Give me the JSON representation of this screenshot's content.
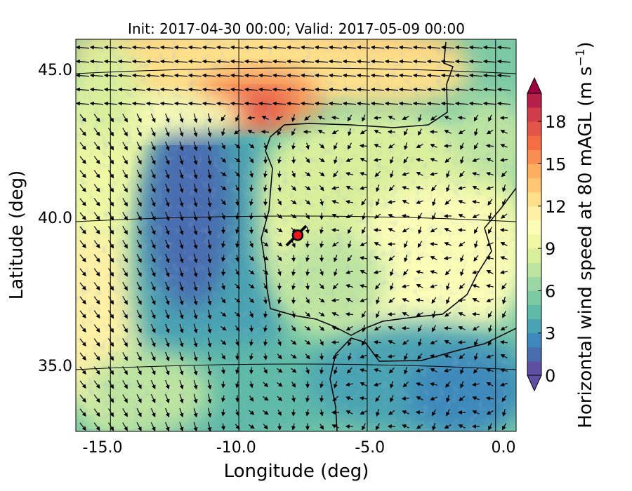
{
  "chart_data": {
    "type": "heatmap",
    "title": "Init: 2017-04-30 00:00; Valid: 2017-05-09 00:00",
    "xlabel": "Longitude (deg)",
    "ylabel": "Latitude (deg)",
    "xlim": [
      -16,
      0.3
    ],
    "ylim": [
      32.8,
      46.2
    ],
    "x_ticks": [
      {
        "value": -15,
        "label": "-15.0"
      },
      {
        "value": -10,
        "label": "-10.0"
      },
      {
        "value": -5,
        "label": "-5.0"
      },
      {
        "value": 0,
        "label": "0.0"
      }
    ],
    "y_ticks": [
      {
        "value": 45,
        "label": "45.0"
      },
      {
        "value": 40,
        "label": "40.0"
      },
      {
        "value": 35,
        "label": "35.0"
      }
    ],
    "colorbar": {
      "label": "Horizontal wind speed at 80 mAGL (m s",
      "label_sup": "−1",
      "label_end": ")",
      "range": [
        0,
        20
      ],
      "ticks": [
        {
          "value": 0,
          "label": "0"
        },
        {
          "value": 3,
          "label": "3"
        },
        {
          "value": 6,
          "label": "6"
        },
        {
          "value": 9,
          "label": "9"
        },
        {
          "value": 12,
          "label": "12"
        },
        {
          "value": 15,
          "label": "15"
        },
        {
          "value": 18,
          "label": "18"
        }
      ],
      "colors": [
        "#5e4fa2",
        "#4a6db0",
        "#3e89bb",
        "#4aa3b2",
        "#5fbaa7",
        "#7bcaa4",
        "#9bd6a4",
        "#bde4a0",
        "#d9ef9b",
        "#eef8a3",
        "#fbfdb7",
        "#fef0a5",
        "#fee08b",
        "#fdc574",
        "#fdae61",
        "#f98e52",
        "#f46d43",
        "#e35549",
        "#d13c4b",
        "#b5204b",
        "#9e0142"
      ],
      "under_color": "#5e4fa2",
      "over_color": "#9e0142"
    },
    "marker": {
      "lon": -7.7,
      "lat": 39.4,
      "color": "#e8161b"
    }
  }
}
